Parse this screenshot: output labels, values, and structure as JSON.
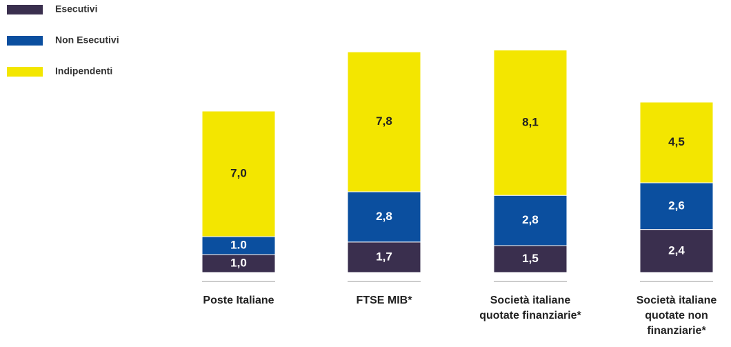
{
  "chart_data": {
    "type": "stacked_bar",
    "categories": [
      "Poste Italiane",
      "FTSE MIB*",
      "Società italiane quotate finanziarie*",
      "Società italiane quotate non finanziarie*"
    ],
    "series": [
      {
        "name": "Esecutivi",
        "color": "#3a2f4e",
        "values": [
          1.0,
          1.7,
          1.5,
          2.4
        ],
        "value_labels": [
          "1,0",
          "1,7",
          "1,5",
          "2,4"
        ]
      },
      {
        "name": "Non Esecutivi",
        "color": "#0b4f9f",
        "values": [
          1.0,
          2.8,
          2.8,
          2.6
        ],
        "value_labels": [
          "1.0",
          "2,8",
          "2,8",
          "2,6"
        ]
      },
      {
        "name": "Indipendenti",
        "color": "#f3e600",
        "values": [
          7.0,
          7.8,
          8.1,
          4.5
        ],
        "value_labels": [
          "7,0",
          "7,8",
          "8,1",
          "4,5"
        ]
      }
    ],
    "legend": "top-left"
  }
}
